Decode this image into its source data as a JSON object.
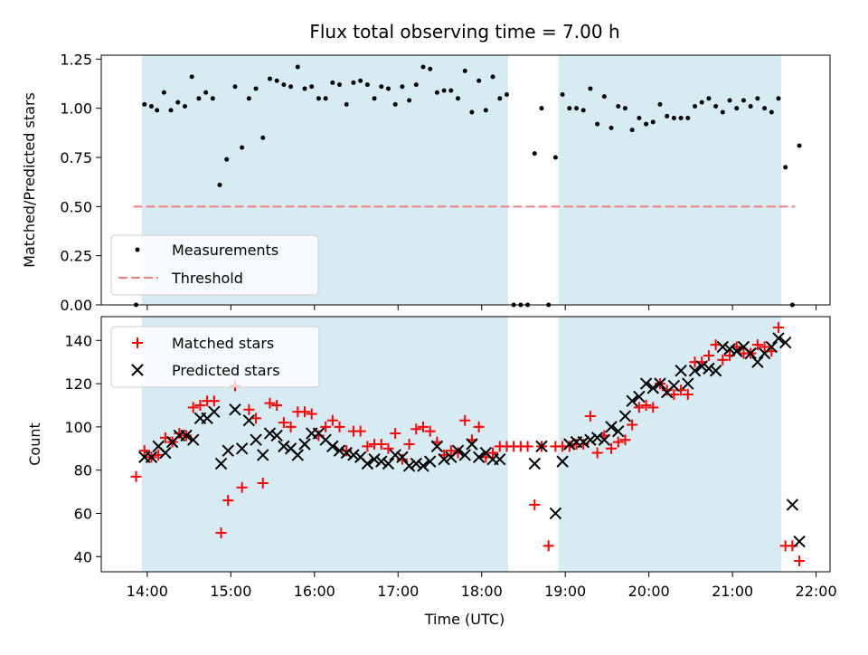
{
  "chart_data": [
    {
      "type": "scatter",
      "title": "Flux total observing time = 7.00 h",
      "ylabel": "Matched/Predicted stars",
      "xlabel": "",
      "xlim": [
        "13:27",
        "22:10"
      ],
      "ylim": [
        0,
        1.27
      ],
      "yticks": [
        "0.00",
        "0.25",
        "0.50",
        "0.75",
        "1.00",
        "1.25"
      ],
      "grid": false,
      "legend": "lower-left",
      "shaded_intervals": [
        [
          "13:56",
          "18:19"
        ],
        [
          "18:55",
          "21:35"
        ]
      ],
      "shade_color": "#add8e6",
      "threshold": {
        "name": "Threshold",
        "value": 0.5,
        "x_range": [
          "13:50",
          "21:45"
        ],
        "color": "#f08080"
      },
      "series": [
        {
          "name": "Measurements",
          "color": "#000000",
          "x": [
            "13:52",
            "13:58",
            "14:03",
            "14:07",
            "14:12",
            "14:17",
            "14:22",
            "14:27",
            "14:32",
            "14:37",
            "14:42",
            "14:47",
            "14:52",
            "14:57",
            "15:03",
            "15:08",
            "15:13",
            "15:18",
            "15:23",
            "15:28",
            "15:33",
            "15:38",
            "15:43",
            "15:48",
            "15:53",
            "15:58",
            "16:03",
            "16:08",
            "16:13",
            "16:18",
            "16:23",
            "16:28",
            "16:33",
            "16:38",
            "16:43",
            "16:48",
            "16:53",
            "16:58",
            "17:03",
            "17:08",
            "17:13",
            "17:18",
            "17:23",
            "17:28",
            "17:33",
            "17:38",
            "17:43",
            "17:48",
            "17:53",
            "17:58",
            "18:03",
            "18:08",
            "18:13",
            "18:18",
            "18:23",
            "18:28",
            "18:33",
            "18:38",
            "18:43",
            "18:48",
            "18:53",
            "18:58",
            "19:03",
            "19:08",
            "19:13",
            "19:18",
            "19:23",
            "19:28",
            "19:33",
            "19:38",
            "19:43",
            "19:48",
            "19:53",
            "19:58",
            "20:03",
            "20:08",
            "20:13",
            "20:18",
            "20:23",
            "20:28",
            "20:33",
            "20:38",
            "20:43",
            "20:48",
            "20:53",
            "20:58",
            "21:03",
            "21:08",
            "21:13",
            "21:18",
            "21:23",
            "21:28",
            "21:33",
            "21:38",
            "21:43",
            "21:48"
          ],
          "y": [
            0.0,
            1.02,
            1.01,
            0.99,
            1.08,
            0.99,
            1.03,
            1.01,
            1.16,
            1.05,
            1.08,
            1.05,
            0.61,
            0.74,
            1.11,
            0.8,
            1.05,
            1.1,
            0.85,
            1.15,
            1.14,
            1.12,
            1.11,
            1.21,
            1.1,
            1.11,
            1.05,
            1.05,
            1.13,
            1.12,
            1.02,
            1.13,
            1.14,
            1.12,
            1.05,
            1.11,
            1.1,
            1.02,
            1.11,
            1.04,
            1.12,
            1.21,
            1.2,
            1.08,
            1.09,
            1.09,
            1.05,
            1.19,
            0.98,
            1.14,
            0.99,
            1.16,
            1.05,
            1.07,
            0.0,
            0.0,
            0.0,
            0.77,
            1.0,
            0.0,
            0.75,
            1.07,
            1.0,
            1.0,
            0.99,
            1.1,
            0.92,
            1.06,
            0.9,
            1.01,
            1.0,
            0.89,
            0.95,
            0.92,
            0.93,
            1.02,
            0.96,
            0.95,
            0.95,
            0.95,
            1.01,
            1.03,
            1.05,
            1.01,
            0.98,
            1.04,
            1.0,
            1.04,
            1.01,
            1.05,
            1.0,
            0.98,
            1.05,
            0.7,
            0.0,
            0.81
          ]
        }
      ]
    },
    {
      "type": "scatter",
      "title": "",
      "ylabel": "Count",
      "xlabel": "Time (UTC)",
      "xlim": [
        "13:27",
        "22:10"
      ],
      "ylim": [
        33,
        151
      ],
      "yticks": [
        "40",
        "60",
        "80",
        "100",
        "120",
        "140"
      ],
      "xticks": [
        "14:00",
        "15:00",
        "16:00",
        "17:00",
        "18:00",
        "19:00",
        "20:00",
        "21:00",
        "22:00"
      ],
      "grid": false,
      "legend": "top-left",
      "shaded_intervals": [
        [
          "13:56",
          "18:19"
        ],
        [
          "18:55",
          "21:35"
        ]
      ],
      "shade_color": "#add8e6",
      "series": [
        {
          "name": "Matched stars",
          "color": "#ff0000",
          "marker": "plus",
          "x": [
            "13:52",
            "13:58",
            "14:03",
            "14:08",
            "14:13",
            "14:18",
            "14:23",
            "14:28",
            "14:33",
            "14:38",
            "14:43",
            "14:48",
            "14:53",
            "14:58",
            "15:03",
            "15:08",
            "15:13",
            "15:18",
            "15:23",
            "15:28",
            "15:33",
            "15:38",
            "15:43",
            "15:48",
            "15:53",
            "15:58",
            "16:03",
            "16:08",
            "16:13",
            "16:18",
            "16:23",
            "16:28",
            "16:33",
            "16:38",
            "16:43",
            "16:48",
            "16:53",
            "16:58",
            "17:03",
            "17:08",
            "17:13",
            "17:18",
            "17:23",
            "17:28",
            "17:33",
            "17:38",
            "17:43",
            "17:48",
            "17:53",
            "17:58",
            "18:03",
            "18:08",
            "18:13",
            "18:18",
            "18:23",
            "18:28",
            "18:33",
            "18:38",
            "18:43",
            "18:48",
            "18:53",
            "18:58",
            "19:03",
            "19:08",
            "19:13",
            "19:18",
            "19:23",
            "19:28",
            "19:33",
            "19:38",
            "19:43",
            "19:48",
            "19:53",
            "19:58",
            "20:03",
            "20:08",
            "20:13",
            "20:18",
            "20:23",
            "20:28",
            "20:33",
            "20:38",
            "20:43",
            "20:48",
            "20:53",
            "20:58",
            "21:03",
            "21:08",
            "21:13",
            "21:18",
            "21:23",
            "21:28",
            "21:33",
            "21:38",
            "21:43",
            "21:48"
          ],
          "y": [
            77,
            89,
            86,
            87,
            95,
            93,
            97,
            96,
            109,
            110,
            112,
            112,
            51,
            66,
            119,
            72,
            108,
            104,
            74,
            111,
            110,
            102,
            100,
            107,
            107,
            106,
            96,
            100,
            103,
            100,
            89,
            98,
            98,
            91,
            92,
            92,
            90,
            97,
            85,
            92,
            99,
            100,
            98,
            93,
            87,
            89,
            88,
            103,
            94,
            100,
            86,
            88,
            91,
            91,
            91,
            91,
            91,
            64,
            91,
            45,
            91,
            91,
            91,
            92,
            92,
            105,
            88,
            96,
            90,
            93,
            94,
            101,
            109,
            110,
            109,
            120,
            117,
            115,
            117,
            115,
            130,
            130,
            133,
            138,
            131,
            133,
            137,
            134,
            134,
            138,
            137,
            135,
            146,
            45,
            45,
            38
          ]
        },
        {
          "name": "Predicted stars",
          "color": "#000000",
          "marker": "x",
          "x": [
            "13:58",
            "14:03",
            "14:08",
            "14:13",
            "14:18",
            "14:23",
            "14:28",
            "14:33",
            "14:38",
            "14:43",
            "14:48",
            "14:53",
            "14:58",
            "15:03",
            "15:08",
            "15:13",
            "15:18",
            "15:23",
            "15:28",
            "15:33",
            "15:38",
            "15:43",
            "15:48",
            "15:53",
            "15:58",
            "16:03",
            "16:08",
            "16:13",
            "16:18",
            "16:23",
            "16:28",
            "16:33",
            "16:38",
            "16:43",
            "16:48",
            "16:53",
            "16:58",
            "17:03",
            "17:08",
            "17:13",
            "17:18",
            "17:23",
            "17:28",
            "17:33",
            "17:38",
            "17:43",
            "17:48",
            "17:53",
            "17:58",
            "18:03",
            "18:08",
            "18:13",
            "18:38",
            "18:43",
            "18:53",
            "18:58",
            "19:03",
            "19:08",
            "19:13",
            "19:18",
            "19:23",
            "19:28",
            "19:33",
            "19:38",
            "19:43",
            "19:48",
            "19:53",
            "19:58",
            "20:03",
            "20:08",
            "20:13",
            "20:18",
            "20:23",
            "20:28",
            "20:33",
            "20:38",
            "20:43",
            "20:48",
            "20:53",
            "20:58",
            "21:03",
            "21:08",
            "21:13",
            "21:18",
            "21:23",
            "21:28",
            "21:33",
            "21:38",
            "21:43",
            "21:48"
          ],
          "y": [
            86,
            86,
            91,
            88,
            93,
            96,
            96,
            94,
            104,
            104,
            107,
            83,
            89,
            108,
            90,
            103,
            94,
            87,
            97,
            96,
            91,
            90,
            87,
            92,
            97,
            97,
            94,
            91,
            89,
            88,
            87,
            86,
            83,
            85,
            84,
            83,
            87,
            86,
            82,
            83,
            82,
            84,
            91,
            85,
            86,
            89,
            87,
            92,
            86,
            88,
            85,
            85,
            83,
            91,
            60,
            84,
            92,
            93,
            93,
            94,
            95,
            94,
            100,
            98,
            105,
            112,
            114,
            120,
            118,
            120,
            116,
            119,
            126,
            120,
            126,
            128,
            127,
            126,
            137,
            136,
            135,
            137,
            134,
            130,
            134,
            137,
            141,
            139,
            64,
            47
          ]
        }
      ]
    }
  ]
}
